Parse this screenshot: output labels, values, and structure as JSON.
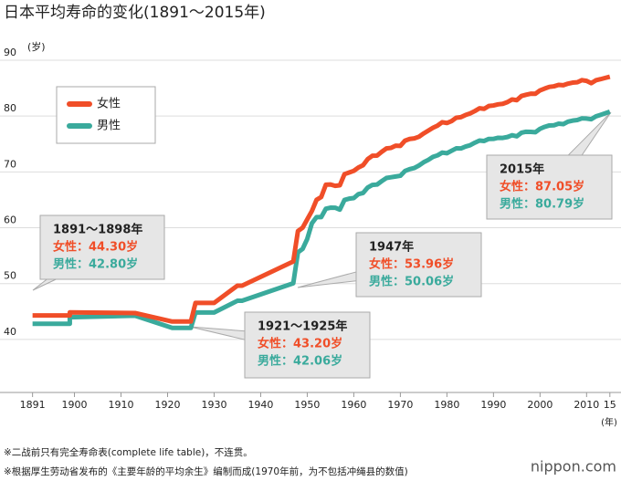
{
  "chart_data": {
    "type": "line",
    "title": "日本平均寿命的变化(1891～2015年)",
    "y_label": "(岁)",
    "x_label": "(年)",
    "x": [
      1891,
      1899,
      1899,
      1913,
      1921,
      1925,
      1926,
      1930,
      1935,
      1936,
      1947,
      1948,
      1949,
      1950,
      1951,
      1952,
      1953,
      1954,
      1955,
      1956,
      1957,
      1958,
      1959,
      1960,
      1961,
      1962,
      1963,
      1964,
      1965,
      1966,
      1967,
      1968,
      1969,
      1970,
      1971,
      1972,
      1973,
      1974,
      1975,
      1976,
      1977,
      1978,
      1979,
      1980,
      1981,
      1982,
      1983,
      1984,
      1985,
      1986,
      1987,
      1988,
      1989,
      1990,
      1991,
      1992,
      1993,
      1994,
      1995,
      1996,
      1997,
      1998,
      1999,
      2000,
      2001,
      2002,
      2003,
      2004,
      2005,
      2006,
      2007,
      2008,
      2009,
      2010,
      2011,
      2012,
      2013,
      2014,
      2015
    ],
    "series": [
      {
        "name": "女性",
        "color": "#f04e28",
        "values": [
          44.3,
          44.3,
          44.85,
          44.73,
          43.2,
          43.2,
          46.54,
          46.54,
          49.63,
          49.63,
          53.96,
          59.4,
          60.0,
          61.5,
          63.0,
          65.0,
          65.5,
          67.7,
          67.75,
          67.5,
          67.6,
          69.6,
          69.9,
          70.19,
          70.8,
          71.2,
          72.3,
          72.9,
          72.92,
          73.6,
          74.2,
          74.3,
          74.7,
          74.66,
          75.6,
          75.9,
          76.0,
          76.3,
          76.89,
          77.4,
          77.9,
          78.3,
          78.9,
          78.76,
          79.1,
          79.7,
          79.8,
          80.2,
          80.48,
          80.9,
          81.4,
          81.3,
          81.8,
          81.9,
          82.1,
          82.2,
          82.5,
          82.98,
          82.85,
          83.59,
          83.82,
          84.01,
          83.99,
          84.6,
          84.93,
          85.23,
          85.33,
          85.59,
          85.52,
          85.81,
          85.99,
          86.05,
          86.44,
          86.3,
          85.9,
          86.41,
          86.61,
          86.83,
          87.05
        ]
      },
      {
        "name": "男性",
        "color": "#3aaa9c",
        "values": [
          42.8,
          42.8,
          43.97,
          44.25,
          42.06,
          42.06,
          44.82,
          44.82,
          46.92,
          46.92,
          50.06,
          55.6,
          56.2,
          58.0,
          60.8,
          61.9,
          61.9,
          63.41,
          63.6,
          63.59,
          63.24,
          64.98,
          65.21,
          65.32,
          66.03,
          66.23,
          67.21,
          67.67,
          67.74,
          68.35,
          68.91,
          69.05,
          69.18,
          69.31,
          70.17,
          70.5,
          70.7,
          71.16,
          71.73,
          72.15,
          72.69,
          72.97,
          73.46,
          73.35,
          73.79,
          74.22,
          74.2,
          74.54,
          74.78,
          75.23,
          75.61,
          75.54,
          75.91,
          75.92,
          76.11,
          76.09,
          76.25,
          76.57,
          76.38,
          77.01,
          77.19,
          77.16,
          77.1,
          77.72,
          78.07,
          78.32,
          78.36,
          78.64,
          78.56,
          79.0,
          79.19,
          79.29,
          79.59,
          79.55,
          79.44,
          79.94,
          80.21,
          80.5,
          80.79
        ]
      }
    ],
    "xlim": [
      1889.5,
      2017
    ],
    "xticks": [
      1891,
      1900,
      1910,
      1920,
      1930,
      1940,
      1950,
      1960,
      1970,
      1980,
      1990,
      2000,
      2010,
      {
        "value": 2015,
        "label": "15"
      }
    ],
    "ylim": [
      30.5,
      90
    ],
    "yticks": [
      40,
      50,
      60,
      70,
      80,
      90
    ],
    "grid": true,
    "legend": "upper left",
    "annotations": [
      {
        "title": "1891～1898年",
        "female": "女性：44.30岁",
        "male": "男性：42.80岁"
      },
      {
        "title": "1921～1925年",
        "female": "女性：43.20岁",
        "male": "男性：42.06岁"
      },
      {
        "title": "1947年",
        "female": "女性：53.96岁",
        "male": "男性：50.06岁"
      },
      {
        "title": "2015年",
        "female": "女性：87.05岁",
        "male": "男性：80.79岁"
      }
    ],
    "notes": [
      "※二战前只有完全寿命表(complete life table)，不连贯。",
      "※根据厚生劳动省发布的《主要年龄的平均余生》编制而成(1970年前，为不包括冲绳县的数值)"
    ],
    "source": "nippon.com"
  }
}
